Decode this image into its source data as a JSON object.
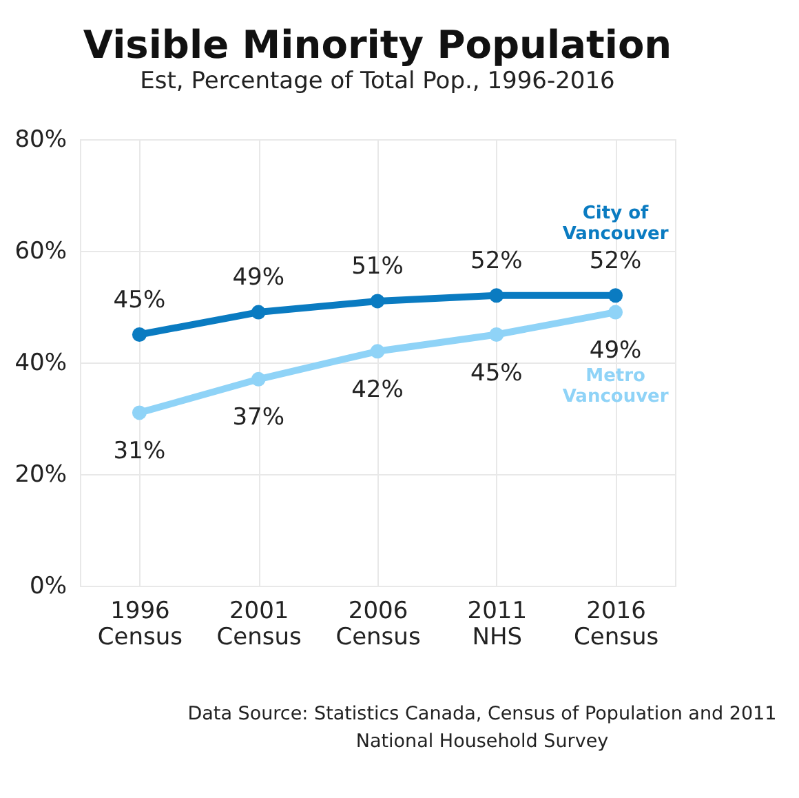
{
  "chart_data": {
    "type": "line",
    "title": "Visible Minority Population",
    "subtitle": "Est, Percentage of Total Pop., 1996-2016",
    "categories": [
      "1996 Census",
      "2001 Census",
      "2006 Census",
      "2011 NHS",
      "2016 Census"
    ],
    "series": [
      {
        "name": "City of Vancouver",
        "color": "#0a7bc1",
        "values": [
          45,
          49,
          51,
          52,
          52
        ],
        "value_labels": [
          "45%",
          "49%",
          "51%",
          "52%",
          "52%"
        ]
      },
      {
        "name": "Metro Vancouver",
        "color": "#8fd3f7",
        "values": [
          31,
          37,
          42,
          45,
          49
        ],
        "value_labels": [
          "31%",
          "37%",
          "42%",
          "45%",
          "49%"
        ]
      }
    ],
    "ylim": [
      0,
      80
    ],
    "yticks": [
      {
        "value": 0,
        "label": "0%"
      },
      {
        "value": 20,
        "label": "20%"
      },
      {
        "value": 40,
        "label": "40%"
      },
      {
        "value": 60,
        "label": "60%"
      },
      {
        "value": 80,
        "label": "80%"
      }
    ],
    "grid": true,
    "marker": "circle",
    "line_style": "solid",
    "legend": false,
    "annotations": [
      "Data Source: Statistics Canada, Census of Population and 2011 National Household Survey"
    ]
  }
}
